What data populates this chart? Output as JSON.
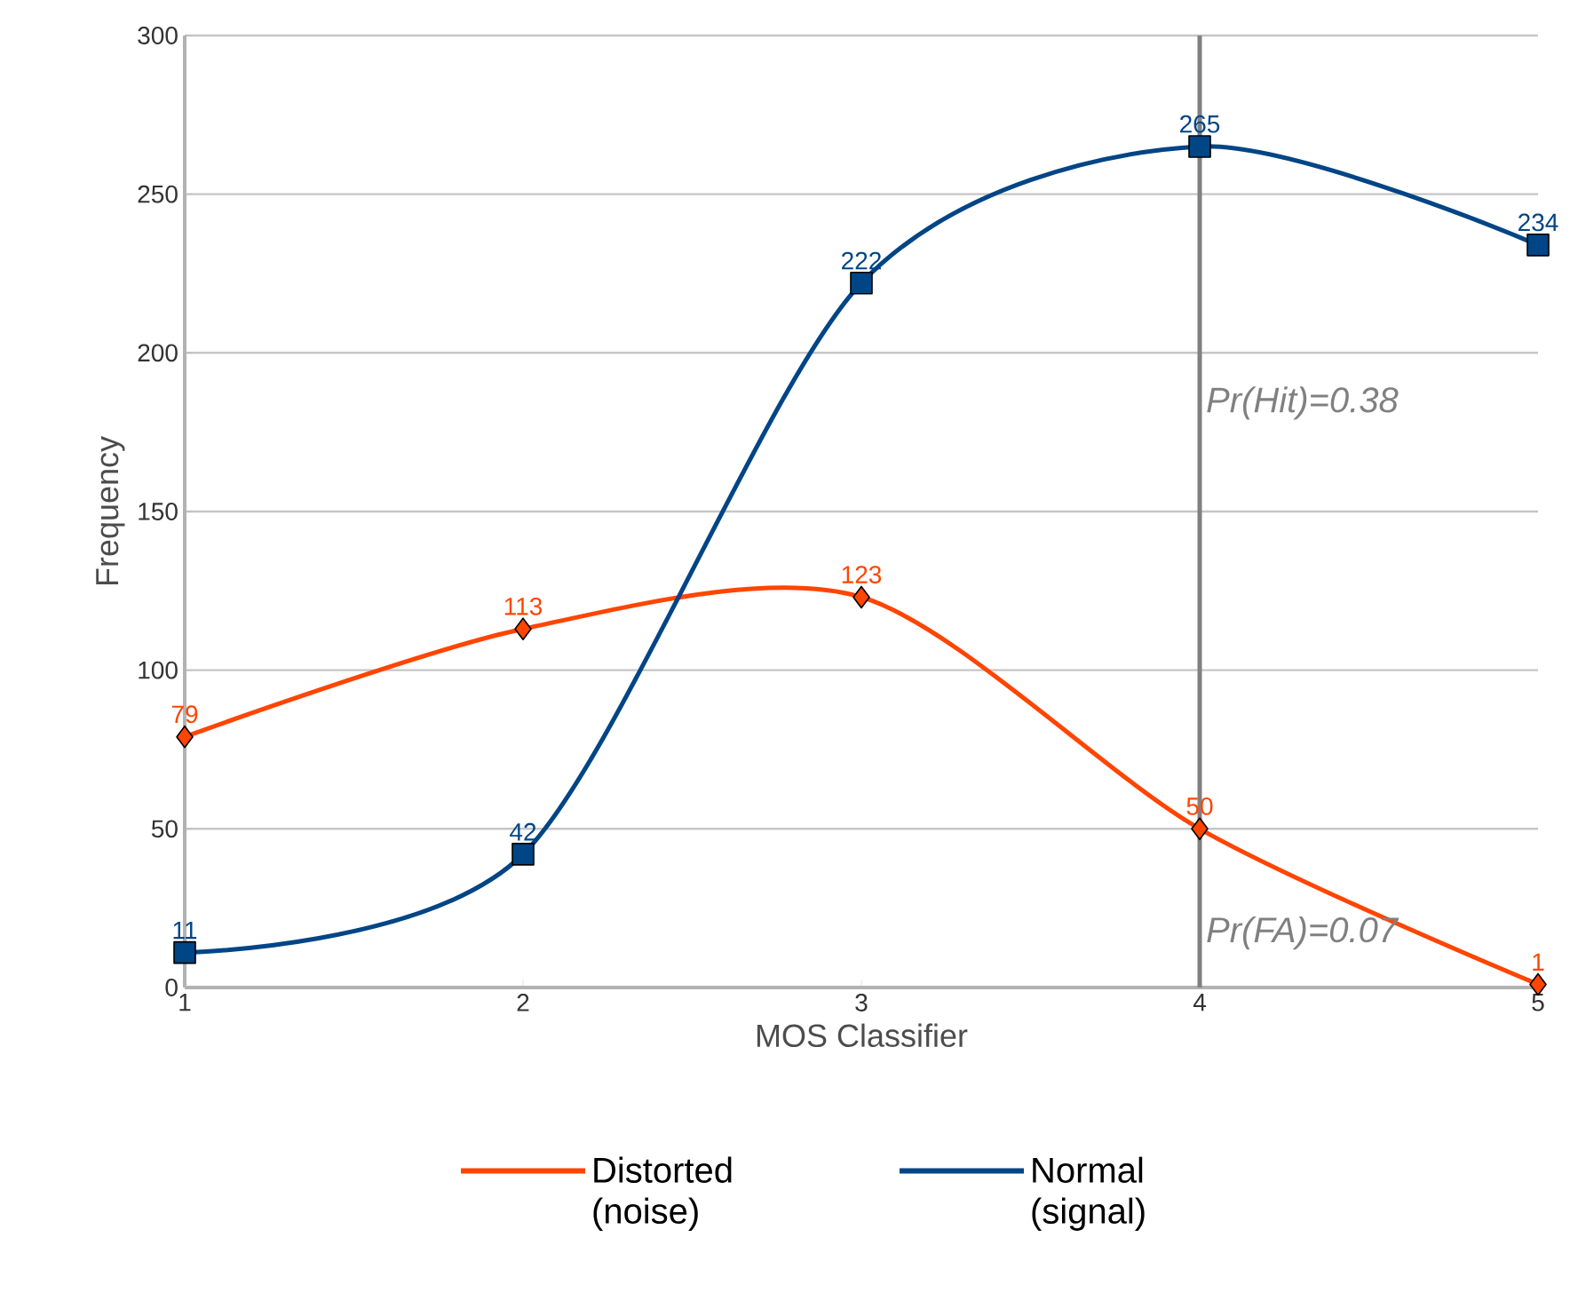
{
  "chart_data": {
    "type": "line",
    "xlabel": "MOS Classifier",
    "ylabel": "Frequency",
    "x": [
      1,
      2,
      3,
      4,
      5
    ],
    "xlim": [
      1,
      5
    ],
    "xticks": [
      1,
      2,
      3,
      4,
      5
    ],
    "ylim": [
      0,
      300
    ],
    "yticks": [
      0,
      50,
      100,
      150,
      200,
      250,
      300
    ],
    "series": [
      {
        "name": "Distorted (noise)",
        "color": "#ff4500",
        "marker": "diamond",
        "values": [
          79,
          113,
          123,
          50,
          1
        ]
      },
      {
        "name": "Normal (signal)",
        "color": "#004586",
        "marker": "square",
        "values": [
          11,
          42,
          222,
          265,
          234
        ]
      }
    ],
    "ref_lines": [
      {
        "axis": "x",
        "value": 4,
        "color": "#808080"
      }
    ],
    "annotations": [
      {
        "text": "Pr(Hit)=0.38",
        "x": 4,
        "y": 177
      },
      {
        "text": "Pr(FA)=0.07",
        "x": 4,
        "y": 10
      }
    ],
    "data_labels": true,
    "grid": "y",
    "legend": "bottom"
  }
}
